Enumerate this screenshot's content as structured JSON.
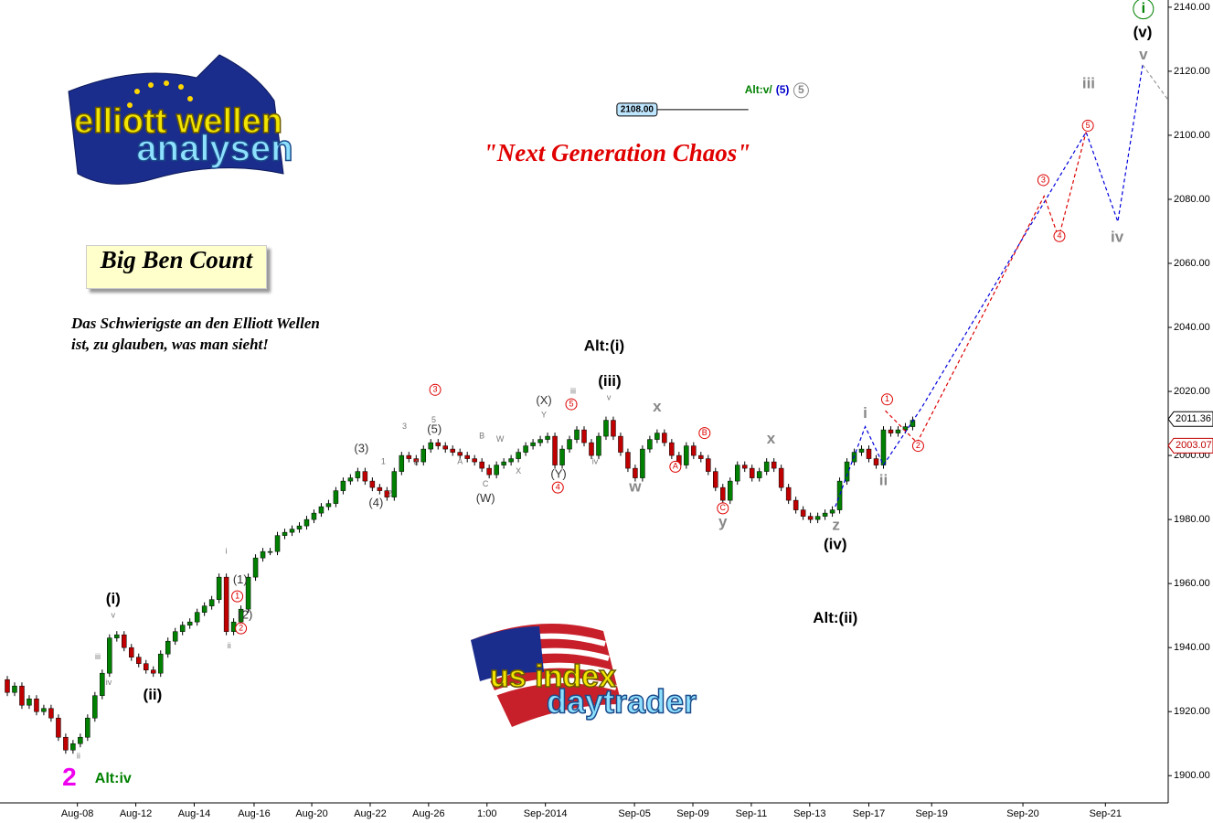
{
  "chart_data": {
    "type": "candlestick",
    "title": "\"Next Generation Chaos\"",
    "box_title": "Big Ben Count",
    "quote": "Das Schwierigste an den Elliott Wellen ist, zu glauben, was man sieht!",
    "logo_top": [
      "elliott wellen",
      "analysen"
    ],
    "logo_bottom": [
      "us index",
      "daytrader"
    ],
    "up_color": "#008000",
    "down_color": "#c00000",
    "close": [
      1930,
      1926,
      1928,
      1922,
      1924,
      1920,
      1921,
      1918,
      1912,
      1908,
      1910,
      1912,
      1918,
      1925,
      1932,
      1943,
      1944,
      1940,
      1937,
      1935,
      1933,
      1932,
      1938,
      1942,
      1945,
      1947,
      1948,
      1951,
      1953,
      1955,
      1962,
      1945,
      1948,
      1952,
      1962,
      1968,
      1970,
      1970,
      1975,
      1976,
      1977,
      1978,
      1980,
      1982,
      1984,
      1985,
      1989,
      1992,
      1993,
      1995,
      1992,
      1990,
      1989,
      1987,
      1995,
      2000,
      1999,
      1998,
      2002,
      2004,
      2003,
      2002,
      2001,
      2000,
      1999,
      1998,
      1996,
      1994,
      1997,
      1998,
      1999,
      2001,
      2003,
      2004,
      2005,
      2006,
      1997,
      2002,
      2005,
      2008,
      2004,
      2000,
      2006,
      2011,
      2006,
      2001,
      1996,
      1993,
      2002,
      2005,
      2007,
      2004,
      2000,
      1997,
      2003,
      2000,
      1999,
      1995,
      1990,
      1986,
      1992,
      1997,
      1996,
      1993,
      1995,
      1998,
      1996,
      1990,
      1986,
      1983,
      1981,
      1980,
      1981,
      1982,
      1983,
      1992,
      1998,
      2001,
      2002,
      1999,
      1997,
      2008,
      2007,
      2008,
      2009,
      2011
    ],
    "projections": [
      {
        "color": "#0000dd",
        "x": [
          114.4,
          118.5,
          121,
          126.25,
          148.75,
          153.1,
          156.5
        ],
        "values": [
          1984,
          2009,
          1997,
          2015,
          2101,
          2073,
          2122
        ]
      },
      {
        "color": "#dd0000",
        "x": [
          121.25,
          125.6,
          143,
          145,
          148.75
        ],
        "values": [
          2014,
          2004,
          2081,
          2068,
          2101
        ]
      },
      {
        "color": "#999999",
        "x": [
          156.5,
          160
        ],
        "values": [
          2122,
          2111
        ]
      }
    ],
    "labels": {
      "primary": {
        "color": "#000000",
        "items": [
          {
            "text": "(i)",
            "x": 15.5,
            "y": 1955
          },
          {
            "text": "(ii)",
            "x": 20.9,
            "y": 1925
          },
          {
            "text": "(iii)",
            "x": 83.5,
            "y": 2023
          },
          {
            "text": "(iv)",
            "x": 114.4,
            "y": 1972
          },
          {
            "text": "(v)",
            "x": 156.5,
            "y": 2132
          },
          {
            "text": "Alt:(i)",
            "x": 82.75,
            "y": 2034
          },
          {
            "text": "Alt:(ii)",
            "x": 114.4,
            "y": 1949
          }
        ]
      },
      "intermediate": {
        "color": "#888888",
        "items": [
          {
            "text": "i",
            "x": 118.5,
            "y": 2013
          },
          {
            "text": "ii",
            "x": 121,
            "y": 1992
          },
          {
            "text": "iii",
            "x": 149.1,
            "y": 2116
          },
          {
            "text": "iv",
            "x": 153,
            "y": 2068
          },
          {
            "text": "v",
            "x": 156.6,
            "y": 2125
          },
          {
            "text": "w",
            "x": 87,
            "y": 1990
          },
          {
            "text": "x",
            "x": 90,
            "y": 2015
          },
          {
            "text": "x",
            "x": 105.6,
            "y": 2005
          },
          {
            "text": "y",
            "x": 99,
            "y": 1979
          },
          {
            "text": "z",
            "x": 114.5,
            "y": 1978
          }
        ]
      },
      "minor": {
        "color": "#333333",
        "items": [
          {
            "text": "(1)",
            "x": 32.9,
            "y": 1961
          },
          {
            "text": "(2)",
            "x": 33.6,
            "y": 1950
          },
          {
            "text": "(3)",
            "x": 49.5,
            "y": 2002
          },
          {
            "text": "(4)",
            "x": 51.5,
            "y": 1985
          },
          {
            "text": "(5)",
            "x": 59.5,
            "y": 2008
          },
          {
            "text": "(W)",
            "x": 66.5,
            "y": 1986.5
          },
          {
            "text": "(X)",
            "x": 74.5,
            "y": 2017
          },
          {
            "text": "(Y)",
            "x": 76.5,
            "y": 1994
          }
        ]
      },
      "minute": {
        "color": "#777777",
        "items": [
          {
            "text": "i",
            "x": 31,
            "y": 1970
          },
          {
            "text": "ii",
            "x": 31.4,
            "y": 1940.5
          },
          {
            "text": "iii",
            "x": 13.4,
            "y": 1937
          },
          {
            "text": "iv",
            "x": 14.9,
            "y": 1929
          },
          {
            "text": "v",
            "x": 15.5,
            "y": 1950
          },
          {
            "text": "ii",
            "x": 10.75,
            "y": 1906
          },
          {
            "text": "1",
            "x": 52.5,
            "y": 1998
          },
          {
            "text": "2",
            "x": 53.4,
            "y": 1988
          },
          {
            "text": "3",
            "x": 55.4,
            "y": 2009
          },
          {
            "text": "4",
            "x": 57,
            "y": 1997.5
          },
          {
            "text": "5",
            "x": 59.4,
            "y": 2011
          },
          {
            "text": "A",
            "x": 63,
            "y": 1998
          },
          {
            "text": "B",
            "x": 66,
            "y": 2006
          },
          {
            "text": "C",
            "x": 66.5,
            "y": 1991
          },
          {
            "text": "W",
            "x": 68.5,
            "y": 2005
          },
          {
            "text": "X",
            "x": 71,
            "y": 1995
          },
          {
            "text": "Y",
            "x": 74.5,
            "y": 2012.5
          },
          {
            "text": "iii",
            "x": 78.5,
            "y": 2020
          },
          {
            "text": "iv",
            "x": 81.5,
            "y": 1998
          },
          {
            "text": "v",
            "x": 83.4,
            "y": 2018
          }
        ]
      },
      "circled": {
        "color": "#dd0000",
        "items": [
          {
            "text": "1",
            "x": 32.5,
            "y": 1956
          },
          {
            "text": "2",
            "x": 33,
            "y": 1946
          },
          {
            "text": "3",
            "x": 59.6,
            "y": 2020.5
          },
          {
            "text": "4",
            "x": 76.4,
            "y": 1990
          },
          {
            "text": "5",
            "x": 78.25,
            "y": 2016
          },
          {
            "text": "A",
            "x": 92.5,
            "y": 1996.5
          },
          {
            "text": "B",
            "x": 96.5,
            "y": 2007
          },
          {
            "text": "C",
            "x": 99,
            "y": 1983.5
          },
          {
            "text": "1",
            "x": 121.5,
            "y": 2017.5
          },
          {
            "text": "2",
            "x": 125.75,
            "y": 2003
          },
          {
            "text": "3",
            "x": 142.9,
            "y": 2086
          },
          {
            "text": "4",
            "x": 145.1,
            "y": 2068.5
          },
          {
            "text": "5",
            "x": 149,
            "y": 2103
          }
        ]
      },
      "cycle": {
        "color": "#008000",
        "items": [
          {
            "text": "i",
            "x": 156.6,
            "y": 2139.5
          }
        ]
      },
      "count": {
        "color": "#ee00ee",
        "items": [
          {
            "text": "2",
            "x": 9.5,
            "y": 1899
          }
        ]
      },
      "alternate": {
        "color": "#008000",
        "items": [
          {
            "text": "Alt:iv",
            "x": 15.5,
            "y": 1899
          }
        ]
      }
    },
    "alt_v": {
      "x": 102,
      "y": 2114,
      "parts": [
        {
          "text": "Alt:v/",
          "color": "#008000"
        },
        {
          "text": "(5)",
          "color": "#0000cc"
        },
        {
          "text": "5",
          "color": "#888888"
        }
      ]
    },
    "level": {
      "value": 2108,
      "label": "2108.00",
      "x": [
        90,
        102.5
      ]
    },
    "price_tags": [
      {
        "value": 2011.36,
        "color": "#000000"
      },
      {
        "value": 2003.07,
        "color": "#c00000"
      }
    ],
    "xlim": [
      0,
      160
    ],
    "ylim": [
      1891.5,
      2142.25
    ],
    "yticks": [
      {
        "value": 1900,
        "label": "1900.00"
      },
      {
        "value": 1920,
        "label": "1920.00"
      },
      {
        "value": 1940,
        "label": "1940.00"
      },
      {
        "value": 1960,
        "label": "1960.00"
      },
      {
        "value": 1980,
        "label": "1980.00"
      },
      {
        "value": 2000,
        "label": "2000.00"
      },
      {
        "value": 2020,
        "label": "2020.00"
      },
      {
        "value": 2040,
        "label": "2040.00"
      },
      {
        "value": 2060,
        "label": "2060.00"
      },
      {
        "value": 2080,
        "label": "2080.00"
      },
      {
        "value": 2100,
        "label": "2100.00"
      },
      {
        "value": 2120,
        "label": "2120.00"
      },
      {
        "value": 2140,
        "label": "2140.00"
      }
    ],
    "xticks": [
      {
        "value": 10.6,
        "label": "Aug-08"
      },
      {
        "value": 18.6,
        "label": "Aug-12"
      },
      {
        "value": 26.6,
        "label": "Aug-14"
      },
      {
        "value": 34.8,
        "label": "Aug-16"
      },
      {
        "value": 42.7,
        "label": "Aug-20"
      },
      {
        "value": 50.7,
        "label": "Aug-22"
      },
      {
        "value": 58.7,
        "label": "Aug-26"
      },
      {
        "value": 66.7,
        "label": "1:00"
      },
      {
        "value": 74.7,
        "label": "Sep-2014"
      },
      {
        "value": 86.9,
        "label": "Sep-05"
      },
      {
        "value": 94.9,
        "label": "Sep-09"
      },
      {
        "value": 102.9,
        "label": "Sep-11"
      },
      {
        "value": 110.9,
        "label": "Sep-13"
      },
      {
        "value": 119,
        "label": "Sep-17"
      },
      {
        "value": 127.6,
        "label": "Sep-19"
      },
      {
        "value": 140.1,
        "label": "Sep-20"
      },
      {
        "value": 151.4,
        "label": "Sep-21"
      }
    ]
  }
}
